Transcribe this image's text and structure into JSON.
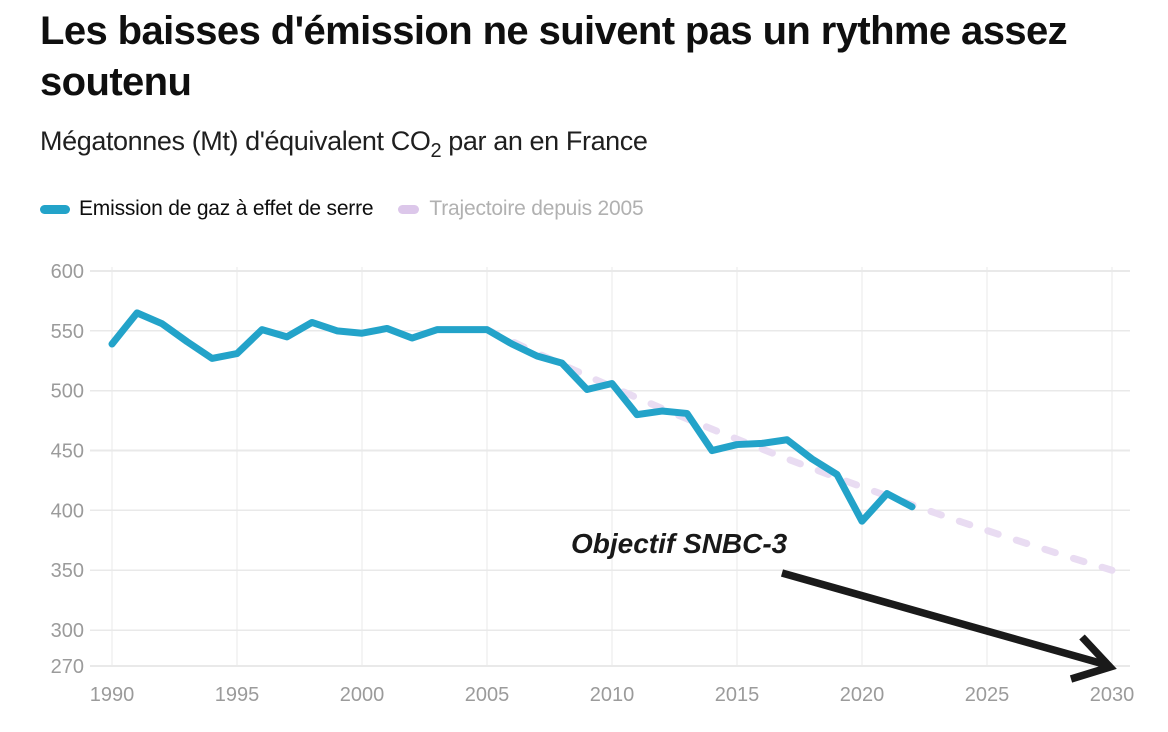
{
  "header": {
    "title_line1": "Les baisses d'émission ne suivent pas un rythme assez",
    "title_line2": "soutenu",
    "subtitle_prefix": "Mégatonnes (Mt) d'équivalent CO",
    "subtitle_subscript": "2",
    "subtitle_suffix": " par an en France"
  },
  "legend": [
    {
      "label": "Emission de gaz à effet de serre",
      "color": "#23a3c9",
      "label_color": "#0e0e0e"
    },
    {
      "label": "Trajectoire depuis 2005",
      "color": "#dcc7ea",
      "label_color": "#b1b1b1"
    }
  ],
  "annotation": {
    "label": "Objectif SNBC-3",
    "arrow_target": {
      "year": 2030,
      "value": 270
    }
  },
  "chart_data": {
    "type": "line",
    "title": "Les baisses d'émission ne suivent pas un rythme assez soutenu",
    "subtitle": "Mégatonnes (Mt) d'équivalent CO2 par an en France",
    "xlim": [
      1990,
      2030
    ],
    "ylim": [
      270,
      600
    ],
    "x_ticks": [
      1990,
      1995,
      2000,
      2005,
      2010,
      2015,
      2020,
      2025,
      2030
    ],
    "y_ticks": [
      270,
      300,
      350,
      400,
      450,
      500,
      550,
      600
    ],
    "grid": true,
    "legend_position": "top",
    "colors": {
      "grid": "#e9e9e9",
      "axis_label": "#9b9b9b",
      "arrow": "#1a1a1a",
      "emission_line": "#23a3c9",
      "trajectory_line": "#e9dcf2"
    },
    "series": [
      {
        "name": "Trajectoire depuis 2005",
        "dashed": true,
        "color": "#e9dcf2",
        "x": [
          2005,
          2006,
          2007,
          2008,
          2009,
          2010,
          2011,
          2012,
          2013,
          2014,
          2015,
          2016,
          2017,
          2018,
          2019,
          2020,
          2021,
          2022,
          2023,
          2024,
          2025,
          2026,
          2027,
          2028,
          2029,
          2030
        ],
        "values": [
          551,
          541.1,
          531.4,
          521.8,
          512.4,
          503.2,
          494.1,
          485.2,
          476.5,
          467.9,
          459.5,
          451.3,
          443.1,
          435.2,
          427.3,
          419.6,
          412.1,
          404.7,
          397.4,
          390.2,
          383.2,
          376.3,
          369.6,
          362.9,
          356.4,
          350
        ]
      },
      {
        "name": "Emission de gaz à effet de serre",
        "dashed": false,
        "color": "#23a3c9",
        "x": [
          1990,
          1991,
          1992,
          1993,
          1994,
          1995,
          1996,
          1997,
          1998,
          1999,
          2000,
          2001,
          2002,
          2003,
          2004,
          2005,
          2006,
          2007,
          2008,
          2009,
          2010,
          2011,
          2012,
          2013,
          2014,
          2015,
          2016,
          2017,
          2018,
          2019,
          2020,
          2021,
          2022
        ],
        "values": [
          539,
          565,
          556,
          541,
          527,
          531,
          551,
          545,
          557,
          550,
          548,
          552,
          544,
          551,
          551,
          551,
          539,
          529,
          523,
          501,
          506,
          480,
          483,
          481,
          450,
          455,
          456,
          459,
          443,
          430,
          391,
          414,
          403
        ]
      }
    ]
  }
}
